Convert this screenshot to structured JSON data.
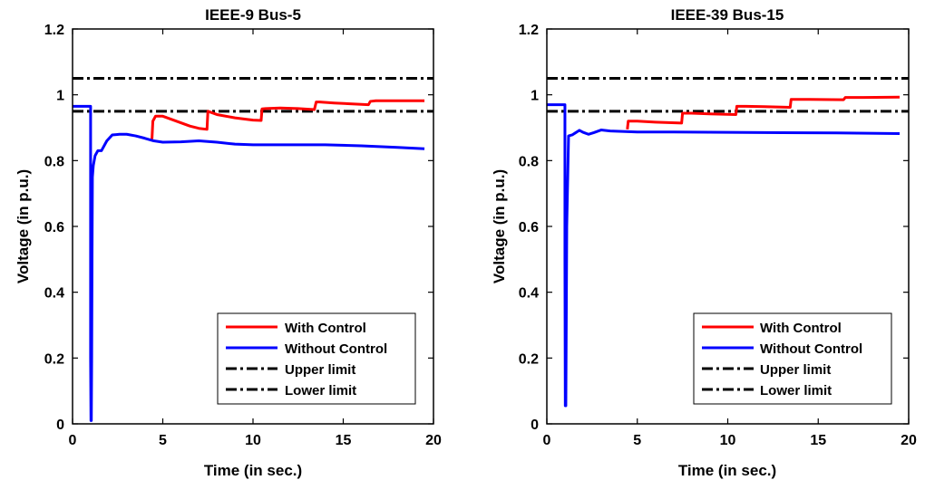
{
  "chart_data": [
    {
      "type": "line",
      "title": "IEEE-9 Bus-5",
      "xlabel": "Time (in sec.)",
      "ylabel": "Voltage (in p.u.)",
      "xlim": [
        0,
        20
      ],
      "ylim": [
        0,
        1.2
      ],
      "xticks": [
        0,
        5,
        10,
        15,
        20
      ],
      "yticks": [
        0,
        0.2,
        0.4,
        0.6,
        0.8,
        1,
        1.2
      ],
      "xtick_labels": [
        "0",
        "5",
        "10",
        "15",
        "20"
      ],
      "ytick_labels": [
        "0",
        "0.2",
        "0.4",
        "0.6",
        "0.8",
        "1",
        "1.2"
      ],
      "legend_position": "bottom-right",
      "series": [
        {
          "name": "With Control",
          "color": "#ff0000",
          "style": "solid",
          "x": [
            4.4,
            4.45,
            4.6,
            5.0,
            5.5,
            6.0,
            6.5,
            7.0,
            7.45,
            7.5,
            7.6,
            8.0,
            9.0,
            10.0,
            10.45,
            10.5,
            10.7,
            11.5,
            12.5,
            13.4,
            13.5,
            13.7,
            14.5,
            16.4,
            16.5,
            16.8,
            18.0,
            19.5
          ],
          "y": [
            0.865,
            0.92,
            0.935,
            0.935,
            0.925,
            0.915,
            0.905,
            0.898,
            0.895,
            0.95,
            0.948,
            0.94,
            0.93,
            0.923,
            0.922,
            0.957,
            0.958,
            0.96,
            0.958,
            0.955,
            0.978,
            0.978,
            0.975,
            0.97,
            0.98,
            0.982,
            0.982,
            0.982
          ]
        },
        {
          "name": "Without Control",
          "color": "#0000ff",
          "style": "solid",
          "x": [
            0,
            0.95,
            1.0,
            1.0,
            1.02,
            1.04,
            1.06,
            1.08,
            1.1,
            1.15,
            1.25,
            1.4,
            1.6,
            1.9,
            2.2,
            2.6,
            3.0,
            3.5,
            4.0,
            4.5,
            5.0,
            6.0,
            7.0,
            8.0,
            9.0,
            10.0,
            12.0,
            14.0,
            16.0,
            18.0,
            19.5
          ],
          "y": [
            0.965,
            0.965,
            0.965,
            0.2,
            0.01,
            0.01,
            0.2,
            0.5,
            0.75,
            0.785,
            0.815,
            0.83,
            0.83,
            0.86,
            0.878,
            0.88,
            0.88,
            0.875,
            0.868,
            0.86,
            0.856,
            0.857,
            0.86,
            0.856,
            0.85,
            0.848,
            0.848,
            0.848,
            0.845,
            0.84,
            0.836
          ]
        },
        {
          "name": "Upper limit",
          "color": "#000000",
          "style": "dashdot",
          "x": [
            0,
            20
          ],
          "y": [
            1.05,
            1.05
          ]
        },
        {
          "name": "Lower limit",
          "color": "#000000",
          "style": "dashdot",
          "x": [
            0,
            20
          ],
          "y": [
            0.95,
            0.95
          ]
        }
      ]
    },
    {
      "type": "line",
      "title": "IEEE-39 Bus-15",
      "xlabel": "Time (in sec.)",
      "ylabel": "Voltage (in p.u.)",
      "xlim": [
        0,
        20
      ],
      "ylim": [
        0,
        1.2
      ],
      "xticks": [
        0,
        5,
        10,
        15,
        20
      ],
      "yticks": [
        0,
        0.2,
        0.4,
        0.6,
        0.8,
        1,
        1.2
      ],
      "xtick_labels": [
        "0",
        "5",
        "10",
        "15",
        "20"
      ],
      "ytick_labels": [
        "0",
        "0.2",
        "0.4",
        "0.6",
        "0.8",
        "1",
        "1.2"
      ],
      "legend_position": "bottom-right",
      "series": [
        {
          "name": "With Control",
          "color": "#ff0000",
          "style": "solid",
          "x": [
            4.45,
            4.5,
            5.0,
            6.0,
            7.45,
            7.5,
            8.0,
            9.0,
            10.45,
            10.5,
            11.0,
            12.0,
            13.45,
            13.5,
            14.5,
            16.4,
            16.5,
            17.5,
            19.5
          ],
          "y": [
            0.895,
            0.92,
            0.92,
            0.917,
            0.914,
            0.944,
            0.944,
            0.942,
            0.94,
            0.965,
            0.965,
            0.964,
            0.962,
            0.986,
            0.986,
            0.985,
            0.992,
            0.992,
            0.993
          ]
        },
        {
          "name": "Without Control",
          "color": "#0000ff",
          "style": "solid",
          "x": [
            0,
            0.95,
            1.0,
            1.0,
            1.02,
            1.05,
            1.1,
            1.2,
            1.4,
            1.6,
            1.8,
            2.0,
            2.3,
            2.6,
            3.0,
            3.5,
            4.0,
            5.0,
            7.0,
            10.0,
            13.0,
            16.0,
            19.5
          ],
          "y": [
            0.97,
            0.97,
            0.97,
            0.5,
            0.055,
            0.055,
            0.6,
            0.875,
            0.878,
            0.885,
            0.892,
            0.886,
            0.88,
            0.885,
            0.893,
            0.89,
            0.889,
            0.887,
            0.887,
            0.886,
            0.885,
            0.884,
            0.882
          ]
        },
        {
          "name": "Upper limit",
          "color": "#000000",
          "style": "dashdot",
          "x": [
            0,
            20
          ],
          "y": [
            1.05,
            1.05
          ]
        },
        {
          "name": "Lower limit",
          "color": "#000000",
          "style": "dashdot",
          "x": [
            0,
            20
          ],
          "y": [
            0.95,
            0.95
          ]
        }
      ]
    }
  ]
}
